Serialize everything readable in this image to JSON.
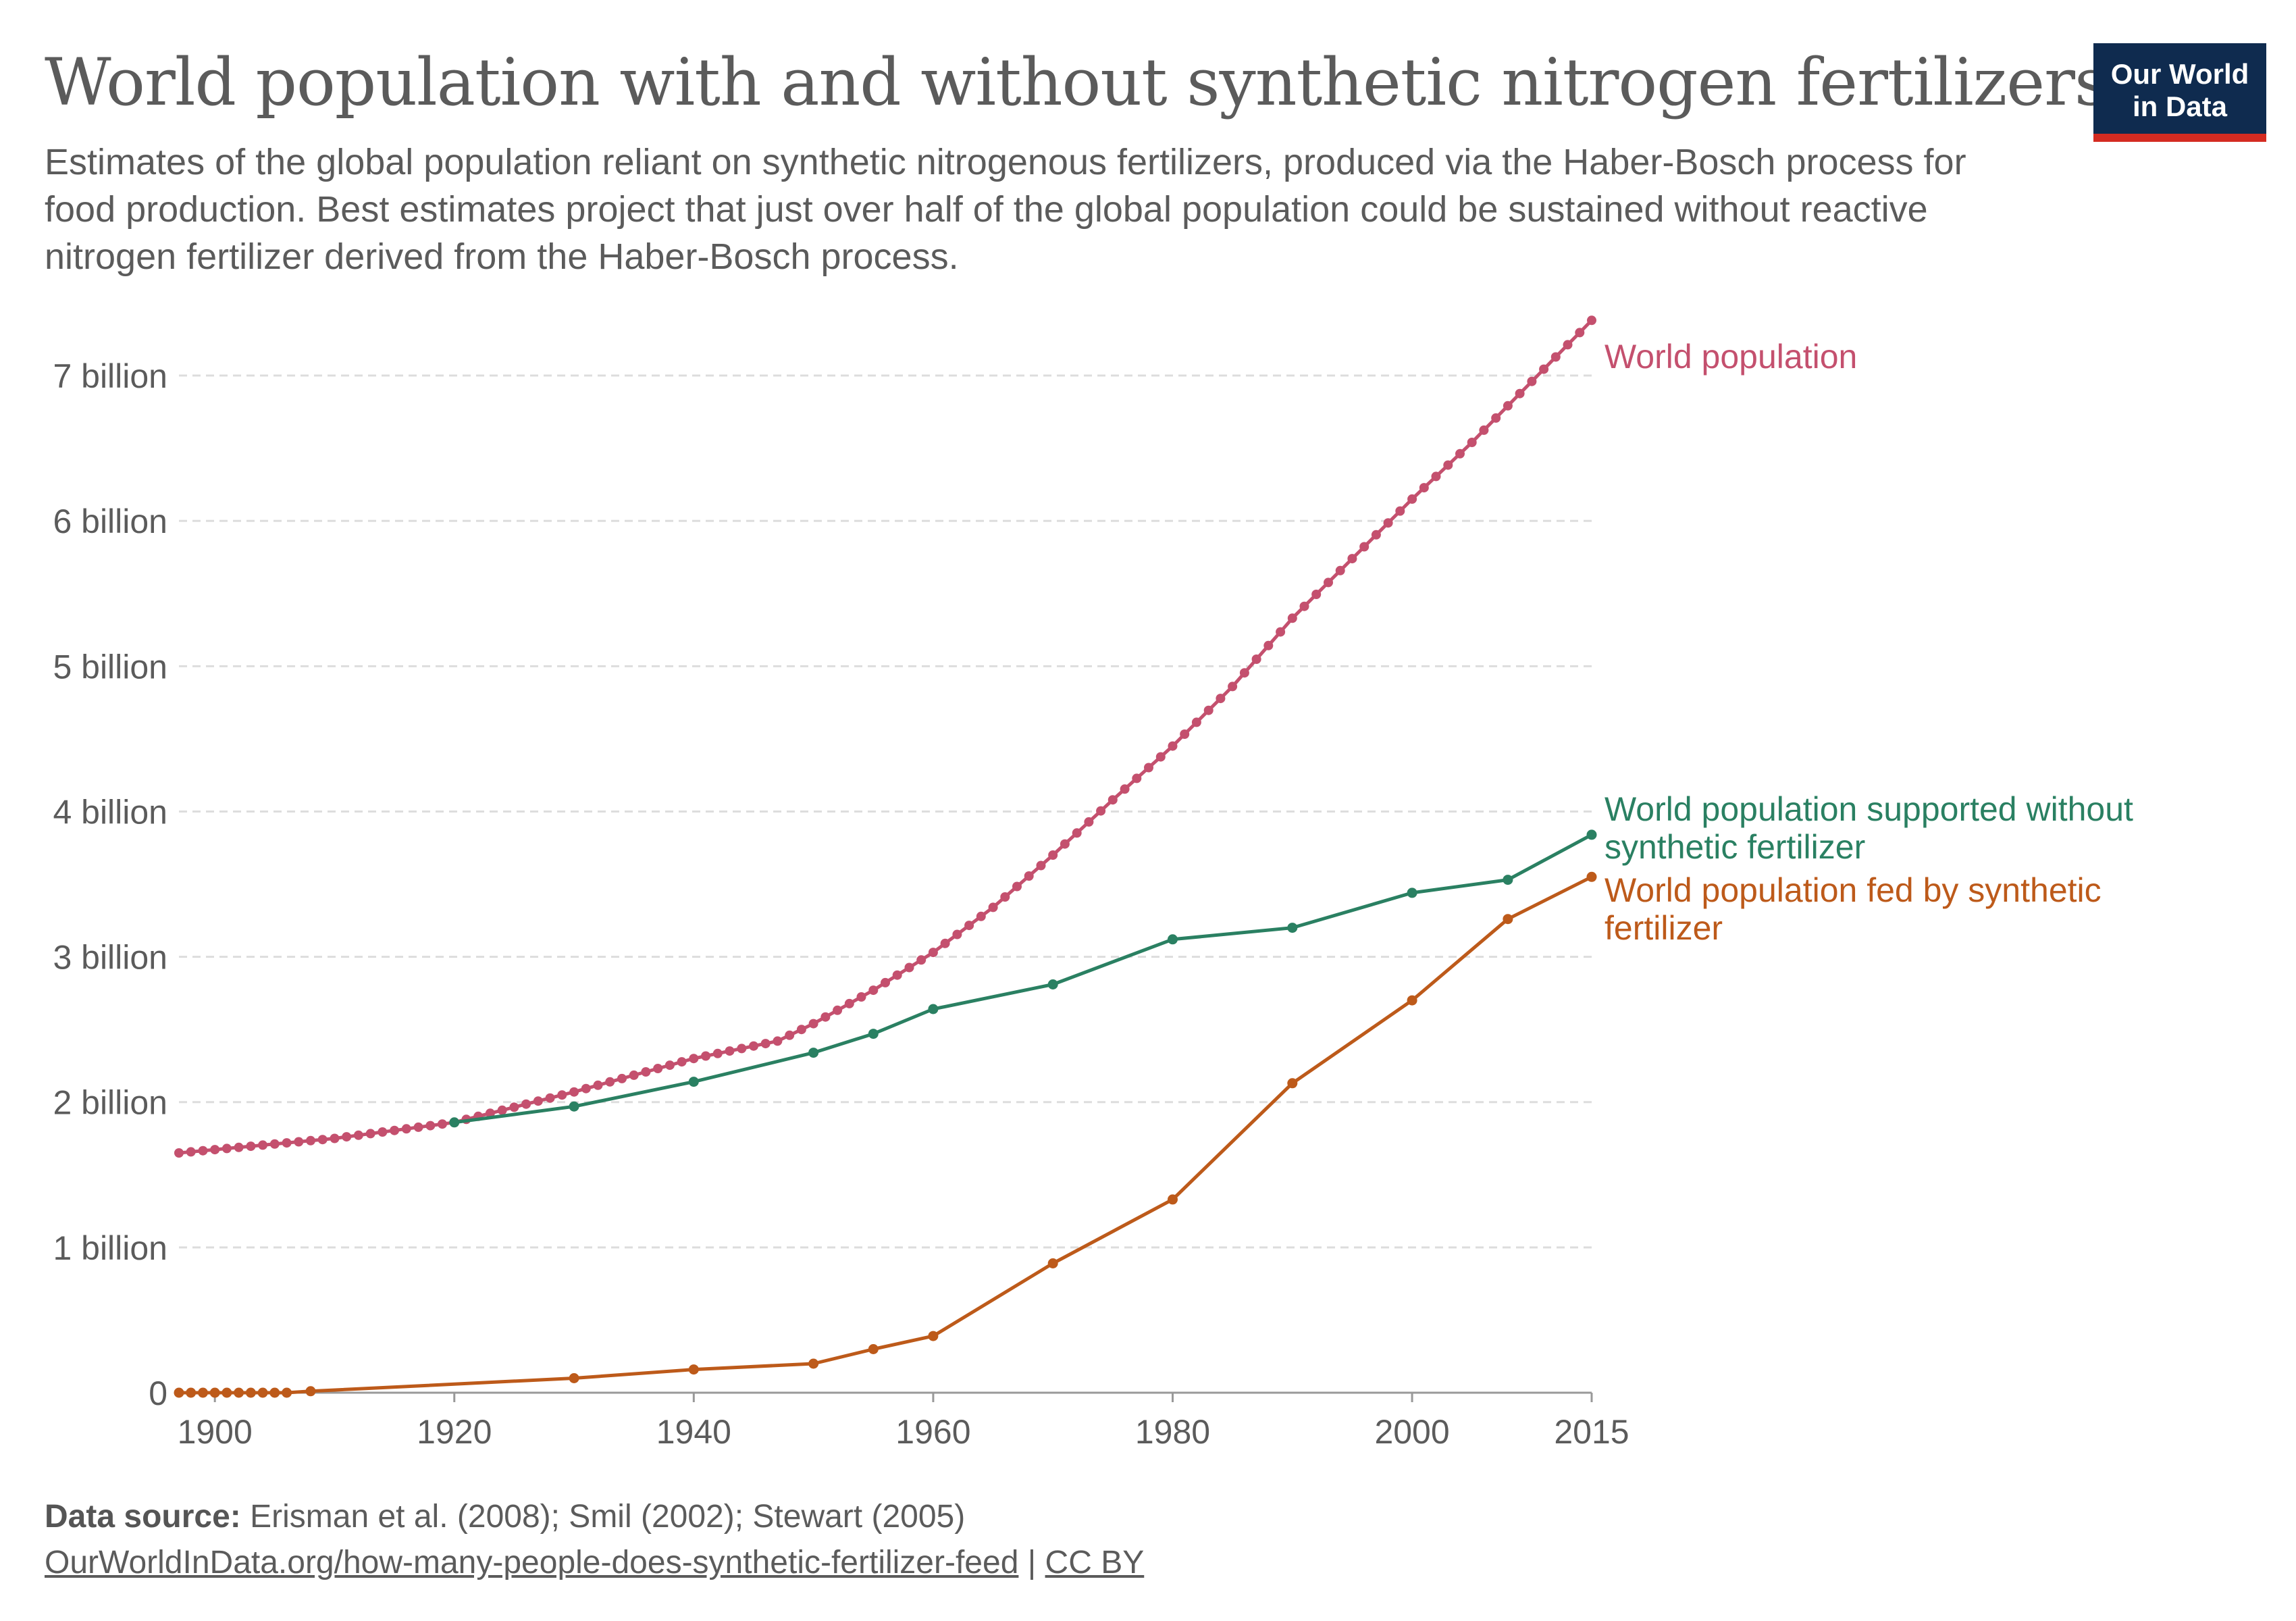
{
  "header": {
    "title": "World population with and without synthetic nitrogen fertilizers",
    "subtitle": "Estimates of the global population reliant on synthetic nitrogenous fertilizers, produced via the Haber-Bosch process for food production. Best estimates project that just over half of the global population could be sustained without reactive nitrogen fertilizer derived from the Haber-Bosch process.",
    "logo_line1": "Our World",
    "logo_line2": "in Data"
  },
  "footer": {
    "source_label": "Data source:",
    "source_text": "Erisman et al. (2008); Smil (2002); Stewart (2005)",
    "link_text": "OurWorldInData.org/how-many-people-does-synthetic-fertilizer-feed",
    "separator": "|",
    "license": "CC BY"
  },
  "colors": {
    "world_population": "#c4506e",
    "without_fertilizer": "#2a8062",
    "fed_by_fertilizer": "#bd5a1a",
    "text": "#5b5b5b",
    "grid": "#dddddd"
  },
  "chart_data": {
    "type": "line",
    "title": "World population with and without synthetic nitrogen fertilizers",
    "xlabel": "",
    "ylabel": "",
    "xlim": [
      1897,
      2015
    ],
    "ylim": [
      0,
      7.4
    ],
    "x_ticks": [
      1900,
      1920,
      1940,
      1960,
      1980,
      2000,
      2015
    ],
    "y_ticks": [
      {
        "value": 0,
        "label": "0"
      },
      {
        "value": 1,
        "label": "1 billion"
      },
      {
        "value": 2,
        "label": "2 billion"
      },
      {
        "value": 3,
        "label": "3 billion"
      },
      {
        "value": 4,
        "label": "4 billion"
      },
      {
        "value": 5,
        "label": "5 billion"
      },
      {
        "value": 6,
        "label": "6 billion"
      },
      {
        "value": 7,
        "label": "7 billion"
      }
    ],
    "grid": "horizontal-dashed",
    "legend": "inline-right",
    "series": [
      {
        "key": "world_population",
        "name": "World population",
        "style": "dense-points",
        "anchors": [
          [
            1897,
            1.65
          ],
          [
            1910,
            1.75
          ],
          [
            1920,
            1.86
          ],
          [
            1930,
            2.07
          ],
          [
            1940,
            2.3
          ],
          [
            1947,
            2.42
          ],
          [
            1950,
            2.54
          ],
          [
            1955,
            2.77
          ],
          [
            1960,
            3.03
          ],
          [
            1965,
            3.34
          ],
          [
            1970,
            3.7
          ],
          [
            1975,
            4.08
          ],
          [
            1980,
            4.45
          ],
          [
            1985,
            4.86
          ],
          [
            1990,
            5.33
          ],
          [
            1995,
            5.74
          ],
          [
            2000,
            6.15
          ],
          [
            2005,
            6.54
          ],
          [
            2010,
            6.96
          ],
          [
            2015,
            7.38
          ]
        ]
      },
      {
        "key": "without_fertilizer",
        "name": "World population supported without synthetic fertilizer",
        "style": "points",
        "points": [
          [
            1920,
            1.86
          ],
          [
            1930,
            1.97
          ],
          [
            1940,
            2.14
          ],
          [
            1950,
            2.34
          ],
          [
            1955,
            2.47
          ],
          [
            1960,
            2.64
          ],
          [
            1970,
            2.81
          ],
          [
            1980,
            3.12
          ],
          [
            1990,
            3.2
          ],
          [
            2000,
            3.44
          ],
          [
            2008,
            3.53
          ],
          [
            2015,
            3.84
          ]
        ]
      },
      {
        "key": "fed_by_fertilizer",
        "name": "World population fed by synthetic fertilizer",
        "style": "points",
        "points": [
          [
            1897,
            0
          ],
          [
            1898,
            0
          ],
          [
            1899,
            0
          ],
          [
            1900,
            0
          ],
          [
            1901,
            0
          ],
          [
            1902,
            0
          ],
          [
            1903,
            0
          ],
          [
            1904,
            0
          ],
          [
            1905,
            0
          ],
          [
            1906,
            0
          ],
          [
            1908,
            0.01
          ],
          [
            1930,
            0.1
          ],
          [
            1940,
            0.16
          ],
          [
            1950,
            0.2
          ],
          [
            1955,
            0.3
          ],
          [
            1960,
            0.39
          ],
          [
            1970,
            0.89
          ],
          [
            1980,
            1.33
          ],
          [
            1990,
            2.13
          ],
          [
            2000,
            2.7
          ],
          [
            2008,
            3.26
          ],
          [
            2015,
            3.55
          ]
        ]
      }
    ]
  }
}
